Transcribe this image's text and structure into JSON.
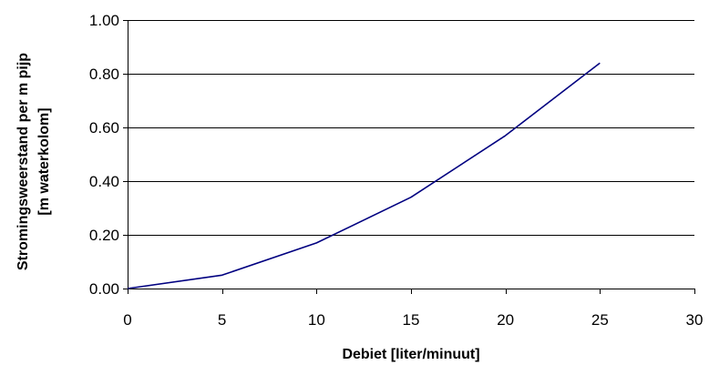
{
  "chart_data": {
    "type": "line",
    "title": "",
    "xlabel": "Debiet [liter/minuut]",
    "ylabel_lines": [
      "Stromingsweerstand per m pijp",
      "[m waterkolom]"
    ],
    "xlim": [
      0,
      30
    ],
    "ylim": [
      0,
      1.0
    ],
    "x_ticks": [
      "0",
      "5",
      "10",
      "15",
      "20",
      "25",
      "30"
    ],
    "y_ticks": [
      "0.00",
      "0.20",
      "0.40",
      "0.60",
      "0.80",
      "1.00"
    ],
    "grid": "horizontal",
    "legend": "none",
    "series": [
      {
        "color": "#000080",
        "x": [
          0,
          5,
          10,
          15,
          20,
          25
        ],
        "y": [
          0.0,
          0.05,
          0.17,
          0.34,
          0.57,
          0.84
        ]
      }
    ]
  }
}
